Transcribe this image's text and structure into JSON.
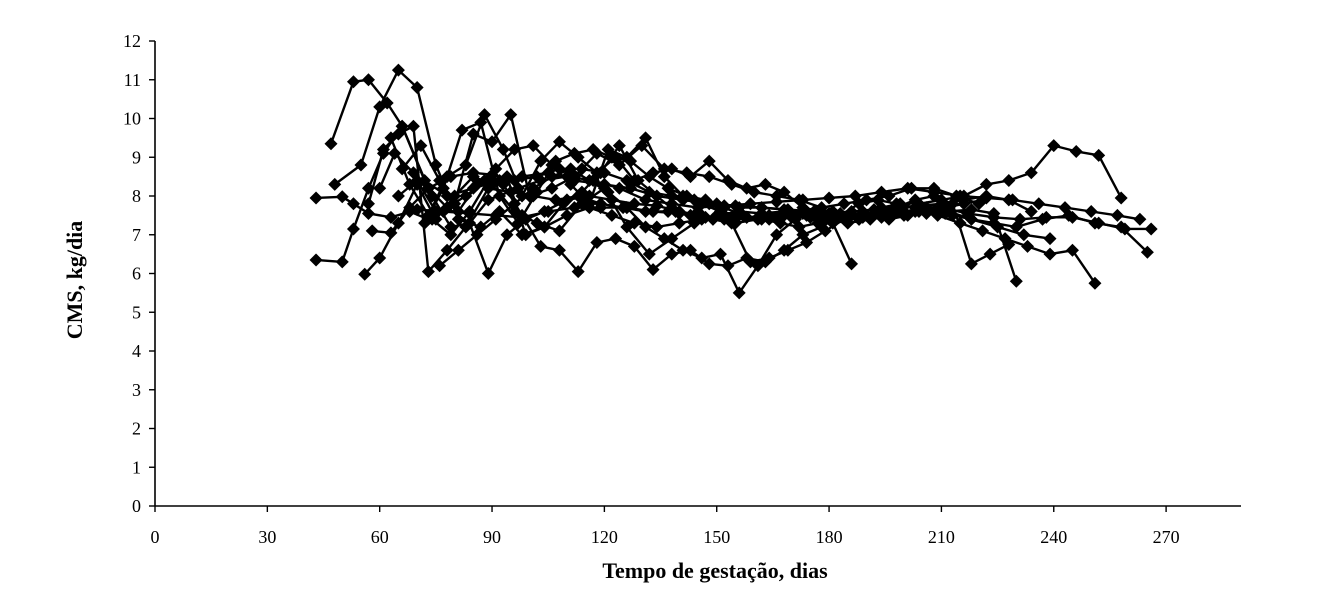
{
  "chart_data": {
    "type": "line",
    "title": "",
    "xlabel": "Tempo de gestação, dias",
    "ylabel": "CMS, kg/dia",
    "xlim": [
      0,
      290
    ],
    "ylim": [
      0,
      12
    ],
    "xticks": [
      0,
      30,
      60,
      90,
      120,
      150,
      180,
      210,
      240,
      270
    ],
    "yticks": [
      0,
      1,
      2,
      3,
      4,
      5,
      6,
      7,
      8,
      9,
      10,
      11,
      12
    ],
    "grid": false,
    "legend": "none",
    "marker": "diamond",
    "line_color": "#000000",
    "series": [
      {
        "x": [
          43,
          50,
          53,
          57,
          63,
          70,
          77,
          84,
          91,
          98,
          105,
          112,
          119,
          126,
          133,
          140,
          147,
          154,
          161,
          168,
          175,
          182,
          189,
          196,
          203,
          210,
          217,
          224,
          231,
          238,
          245,
          252,
          259,
          266
        ],
        "y": [
          7.95,
          7.98,
          7.8,
          7.55,
          7.45,
          7.65,
          7.6,
          7.55,
          7.5,
          7.45,
          7.6,
          7.7,
          7.7,
          7.7,
          7.6,
          7.55,
          7.45,
          7.4,
          7.45,
          7.5,
          7.45,
          7.4,
          7.45,
          7.6,
          7.85,
          7.7,
          7.55,
          7.45,
          7.4,
          7.45,
          7.45,
          7.3,
          7.15,
          7.15
        ]
      },
      {
        "x": [
          43,
          50,
          53,
          57,
          61,
          66,
          73,
          78,
          84,
          89,
          97,
          103,
          110,
          117,
          124,
          131,
          138,
          145,
          152,
          159,
          166,
          173,
          180,
          187,
          194,
          201,
          208,
          215,
          222,
          229,
          236,
          243,
          250,
          257,
          263
        ],
        "y": [
          6.35,
          6.3,
          7.15,
          8.2,
          9.1,
          9.8,
          8.2,
          7.7,
          7.3,
          7.9,
          8.2,
          8.4,
          8.5,
          8.4,
          8.2,
          7.9,
          7.8,
          7.7,
          7.75,
          7.8,
          7.85,
          7.9,
          7.95,
          8.0,
          8.1,
          8.2,
          8.1,
          8.0,
          7.95,
          7.9,
          7.8,
          7.7,
          7.6,
          7.5,
          7.4
        ]
      },
      {
        "x": [
          47,
          53,
          57,
          62,
          66,
          72,
          78,
          85,
          92,
          98,
          105,
          112,
          120,
          127,
          134,
          141,
          148,
          155,
          162,
          169,
          176,
          183,
          190,
          197,
          204,
          211,
          218,
          225,
          232,
          239
        ],
        "y": [
          9.35,
          10.95,
          11.0,
          10.4,
          9.8,
          8.4,
          8.0,
          8.2,
          8.4,
          8.5,
          8.6,
          8.4,
          8.3,
          8.2,
          8.0,
          7.9,
          7.8,
          7.75,
          7.7,
          7.65,
          7.6,
          7.55,
          7.5,
          7.55,
          7.6,
          7.55,
          7.4,
          7.2,
          7.0,
          6.9
        ]
      },
      {
        "x": [
          48,
          55,
          60,
          65,
          70,
          75,
          81,
          87,
          92,
          98,
          104,
          110,
          116,
          122,
          128,
          134,
          140,
          146,
          152,
          158,
          164,
          170,
          176,
          182,
          188,
          194,
          200,
          206,
          212,
          218,
          224,
          230,
          237,
          244,
          251,
          258,
          265
        ],
        "y": [
          8.3,
          8.8,
          10.3,
          11.25,
          10.8,
          8.8,
          7.4,
          7.2,
          7.6,
          7.0,
          7.2,
          7.5,
          7.7,
          7.5,
          7.3,
          7.2,
          7.3,
          7.4,
          7.5,
          7.45,
          7.4,
          7.45,
          7.5,
          7.45,
          7.4,
          7.5,
          7.6,
          7.7,
          7.6,
          7.4,
          7.3,
          7.2,
          7.4,
          7.5,
          7.3,
          7.2,
          6.55
        ]
      },
      {
        "x": [
          56,
          60,
          65,
          70,
          75,
          80,
          85,
          90,
          96,
          102,
          108,
          114,
          120,
          126,
          132,
          138,
          144,
          150,
          156,
          162,
          168,
          174,
          180,
          186,
          192,
          198,
          204,
          210,
          216,
          222,
          228,
          234,
          240,
          246,
          252,
          258
        ],
        "y": [
          5.98,
          6.4,
          7.3,
          8.3,
          7.4,
          8.0,
          8.5,
          8.3,
          7.6,
          7.3,
          7.1,
          7.8,
          8.2,
          7.2,
          6.5,
          6.9,
          7.3,
          7.5,
          7.6,
          7.55,
          7.6,
          7.5,
          7.45,
          7.5,
          7.55,
          7.6,
          7.8,
          7.9,
          8.0,
          8.3,
          8.4,
          8.6,
          9.3,
          9.15,
          9.05,
          7.95
        ]
      },
      {
        "x": [
          57,
          61,
          65,
          69,
          73,
          78,
          83,
          89,
          95,
          101,
          107,
          113,
          119,
          125,
          131,
          137,
          143,
          149,
          155,
          161,
          167,
          173,
          179,
          185,
          191,
          197,
          203,
          209,
          215,
          221,
          227,
          233,
          239,
          245,
          251
        ],
        "y": [
          7.8,
          9.2,
          9.6,
          9.8,
          6.05,
          6.6,
          7.2,
          8.2,
          8.1,
          8.0,
          7.9,
          8.0,
          7.8,
          7.7,
          7.6,
          7.6,
          7.5,
          7.4,
          7.3,
          7.4,
          7.5,
          7.55,
          7.4,
          7.3,
          7.4,
          7.5,
          7.6,
          7.5,
          7.3,
          7.1,
          6.9,
          6.7,
          6.5,
          6.6,
          5.75
        ]
      },
      {
        "x": [
          58,
          63,
          68,
          73,
          79,
          85,
          90,
          96,
          102,
          108,
          114,
          120,
          126,
          132,
          138,
          144,
          150,
          156,
          162,
          168,
          174,
          180,
          186,
          192,
          198,
          204,
          210,
          216,
          222,
          228,
          234
        ],
        "y": [
          7.1,
          7.05,
          7.7,
          8.2,
          8.5,
          8.6,
          8.55,
          8.4,
          8.5,
          8.7,
          8.7,
          8.6,
          8.4,
          8.1,
          8.0,
          7.9,
          7.8,
          7.7,
          7.7,
          7.65,
          7.6,
          7.55,
          7.6,
          7.65,
          7.7,
          7.75,
          7.8,
          7.9,
          8.0,
          7.9,
          7.6
        ]
      },
      {
        "x": [
          60,
          64,
          69,
          74,
          79,
          84,
          89,
          94,
          99,
          104,
          110,
          116,
          122,
          128,
          134,
          140,
          146,
          152,
          158,
          164,
          170,
          176,
          182,
          188,
          194,
          200,
          206,
          212,
          218,
          224,
          230
        ],
        "y": [
          8.2,
          9.1,
          8.6,
          8.0,
          7.2,
          7.3,
          6.0,
          7.0,
          7.4,
          7.6,
          7.9,
          8.0,
          7.9,
          7.8,
          7.75,
          7.6,
          7.5,
          7.4,
          7.45,
          7.5,
          7.55,
          7.5,
          7.45,
          7.4,
          7.45,
          7.5,
          7.55,
          7.6,
          7.65,
          7.55,
          5.8
        ]
      },
      {
        "x": [
          63,
          68,
          73,
          78,
          83,
          88,
          93,
          98,
          103,
          108,
          113,
          118,
          123,
          128,
          133,
          138,
          143,
          148,
          153,
          158,
          163,
          168,
          173,
          178,
          183,
          188,
          193,
          198,
          203,
          208,
          213,
          218,
          223,
          228
        ],
        "y": [
          9.5,
          8.3,
          7.5,
          8.5,
          8.8,
          10.1,
          9.2,
          8.0,
          8.9,
          9.4,
          9.0,
          8.6,
          9.0,
          8.4,
          8.6,
          8.7,
          8.5,
          8.9,
          8.4,
          8.2,
          8.3,
          8.1,
          7.7,
          7.6,
          7.5,
          7.4,
          7.6,
          7.7,
          7.9,
          8.0,
          7.8,
          6.25,
          6.5,
          6.75
        ]
      },
      {
        "x": [
          65,
          70,
          75,
          80,
          85,
          90,
          95,
          100,
          106,
          112,
          118,
          124,
          130,
          136,
          142,
          148,
          154,
          160,
          166,
          172,
          178,
          184,
          190,
          196,
          202,
          208,
          214,
          220
        ],
        "y": [
          8.0,
          8.4,
          7.6,
          7.8,
          9.6,
          9.4,
          10.1,
          8.0,
          8.2,
          8.5,
          9.1,
          8.8,
          9.3,
          8.7,
          8.6,
          8.5,
          8.3,
          8.1,
          8.0,
          7.9,
          7.7,
          7.8,
          7.9,
          8.0,
          8.2,
          8.2,
          8.0,
          7.8
        ]
      },
      {
        "x": [
          66,
          71,
          76,
          81,
          86,
          91,
          96,
          101,
          106,
          111,
          116,
          121,
          126,
          131,
          136,
          141,
          146,
          151,
          156,
          161,
          166,
          171,
          176,
          181,
          186,
          191,
          196,
          201,
          206,
          211,
          216,
          221
        ],
        "y": [
          8.7,
          9.3,
          8.4,
          7.6,
          8.3,
          8.7,
          9.2,
          9.3,
          8.8,
          8.3,
          7.8,
          9.2,
          9.0,
          9.5,
          8.5,
          8.0,
          7.8,
          7.6,
          7.5,
          7.4,
          7.45,
          7.5,
          7.55,
          7.6,
          7.5,
          7.45,
          7.4,
          7.5,
          7.6,
          7.7,
          7.8,
          7.9
        ]
      },
      {
        "x": [
          68,
          73,
          78,
          83,
          88,
          93,
          98,
          103,
          108,
          113,
          118,
          123,
          128,
          133,
          138,
          143,
          148,
          153,
          158,
          163,
          168,
          173,
          178,
          183,
          188,
          193,
          198,
          203,
          208,
          213
        ],
        "y": [
          7.6,
          7.4,
          7.7,
          8.0,
          8.4,
          8.3,
          7.5,
          6.7,
          6.6,
          6.05,
          6.8,
          6.9,
          6.7,
          6.1,
          6.5,
          6.6,
          6.25,
          6.2,
          6.4,
          6.3,
          6.6,
          7.0,
          7.2,
          7.5,
          7.8,
          7.9,
          7.8,
          7.7,
          7.6,
          7.5
        ]
      },
      {
        "x": [
          72,
          77,
          82,
          87,
          92,
          97,
          102,
          107,
          112,
          117,
          122,
          127,
          132,
          137,
          142,
          147,
          152,
          157,
          162,
          167,
          172,
          177,
          182
        ],
        "y": [
          7.3,
          8.2,
          9.7,
          9.9,
          8.0,
          7.3,
          8.1,
          8.9,
          9.1,
          9.2,
          9.0,
          8.9,
          8.5,
          8.2,
          8.0,
          7.9,
          7.7,
          7.5,
          7.4,
          7.3,
          7.2,
          7.3,
          7.5
        ]
      },
      {
        "x": [
          74,
          79,
          84,
          89,
          94,
          99,
          104,
          109,
          114,
          119,
          124,
          129,
          134,
          139,
          144,
          149,
          154,
          159,
          164,
          169,
          174,
          179,
          184,
          189,
          194,
          199
        ],
        "y": [
          7.4,
          7.0,
          7.6,
          8.4,
          8.5,
          7.0,
          7.2,
          7.8,
          8.1,
          8.6,
          9.3,
          8.4,
          8.0,
          7.6,
          7.5,
          7.4,
          7.3,
          6.3,
          6.4,
          6.6,
          6.8,
          7.1,
          7.4,
          7.6,
          7.7,
          7.8
        ]
      },
      {
        "x": [
          76,
          81,
          86,
          91,
          96,
          101,
          106,
          111,
          116,
          121,
          126,
          131,
          136,
          141,
          146,
          151,
          156,
          161,
          166,
          171,
          176,
          181,
          186
        ],
        "y": [
          6.2,
          6.6,
          7.0,
          7.4,
          7.8,
          8.2,
          8.5,
          8.7,
          8.4,
          8.1,
          7.7,
          7.2,
          6.9,
          6.6,
          6.4,
          6.5,
          5.5,
          6.2,
          7.0,
          7.4,
          7.6,
          7.3,
          6.25
        ]
      }
    ]
  }
}
